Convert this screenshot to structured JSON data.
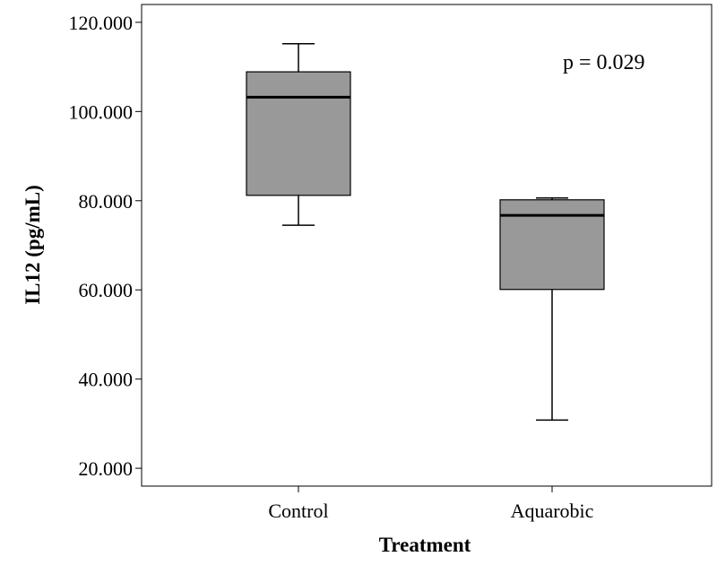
{
  "chart_data": {
    "type": "box",
    "title": "",
    "xlabel": "Treatment",
    "ylabel": "IL12 (pg/mL)",
    "ylim": [
      16.0,
      124.0
    ],
    "yticks": [
      20,
      40,
      60,
      80,
      100,
      120
    ],
    "ytick_labels": [
      "20.000",
      "40.000",
      "60.000",
      "80.000",
      "100.000",
      "120.000"
    ],
    "categories": [
      "Control",
      "Aquarobic"
    ],
    "boxes": [
      {
        "category": "Control",
        "min": 74.5,
        "q1": 81.2,
        "median": 103.2,
        "q3": 108.9,
        "max": 115.2
      },
      {
        "category": "Aquarobic",
        "min": 30.8,
        "q1": 60.1,
        "median": 76.7,
        "q3": 80.2,
        "max": 80.6
      }
    ],
    "annotation": "p = 0.029",
    "grid": false,
    "colors": {
      "box_fill": "#999999",
      "line": "#000000",
      "background": "#ffffff"
    }
  }
}
